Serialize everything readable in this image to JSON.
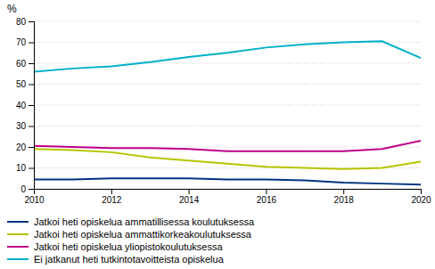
{
  "chart_data": {
    "type": "line",
    "ylabel": "%",
    "x": [
      2010,
      2011,
      2012,
      2013,
      2014,
      2015,
      2016,
      2017,
      2018,
      2019,
      2020
    ],
    "series": [
      {
        "name": "Jatkoi heti opiskelua ammatillisessa koulutuksessa",
        "color": "#003580",
        "values": [
          4.5,
          4.5,
          5.0,
          5.0,
          5.0,
          4.5,
          4.5,
          4.0,
          3.0,
          2.5,
          2.0
        ]
      },
      {
        "name": "Jatkoi heti opiskelua ammattikorkeakoulutuksessa",
        "color": "#b5c400",
        "values": [
          19.0,
          18.5,
          17.5,
          15.0,
          13.5,
          12.0,
          10.5,
          10.0,
          9.5,
          10.0,
          13.0
        ]
      },
      {
        "name": "Jatkoi heti opiskelua yliopistokoulutuksessa",
        "color": "#c0008a",
        "values": [
          20.5,
          20.0,
          19.5,
          19.5,
          19.0,
          18.0,
          18.0,
          18.0,
          18.0,
          19.0,
          23.0
        ]
      },
      {
        "name": "Ei jatkanut heti tutkintotavoitteista opiskelua",
        "color": "#00b0c8",
        "values": [
          56.0,
          57.5,
          58.5,
          60.5,
          63.0,
          65.0,
          67.5,
          69.0,
          70.0,
          70.5,
          62.5
        ]
      }
    ],
    "xlim": [
      2010,
      2020
    ],
    "xticks": [
      2010,
      2012,
      2014,
      2016,
      2018,
      2020
    ],
    "ylim": [
      0,
      80
    ],
    "yticks": [
      0,
      10,
      20,
      30,
      40,
      50,
      60,
      70,
      80
    ],
    "grid": true,
    "legend": "bottom"
  }
}
